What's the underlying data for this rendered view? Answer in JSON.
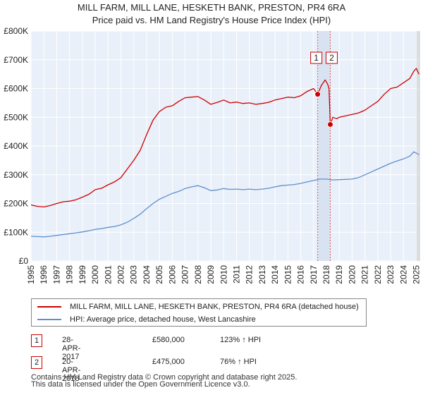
{
  "title_line1": "MILL FARM, MILL LANE, HESKETH BANK, PRESTON, PR4 6RA",
  "title_line2": "Price paid vs. HM Land Registry's House Price Index (HPI)",
  "chart_data": {
    "type": "line",
    "title": "MILL FARM, MILL LANE, HESKETH BANK, PRESTON, PR4 6RA — Price paid vs. HM Land Registry's House Price Index (HPI)",
    "xlabel": "",
    "ylabel": "",
    "xlim": [
      1995,
      2025.3
    ],
    "ylim": [
      0,
      800000
    ],
    "x_ticks": [
      1995,
      1996,
      1997,
      1998,
      1999,
      2000,
      2001,
      2002,
      2003,
      2004,
      2005,
      2006,
      2007,
      2008,
      2009,
      2010,
      2011,
      2012,
      2013,
      2014,
      2015,
      2016,
      2017,
      2018,
      2019,
      2020,
      2021,
      2022,
      2023,
      2024,
      2025
    ],
    "y_ticks": [
      {
        "value": 0,
        "label": "£0"
      },
      {
        "value": 100000,
        "label": "£100K"
      },
      {
        "value": 200000,
        "label": "£200K"
      },
      {
        "value": 300000,
        "label": "£300K"
      },
      {
        "value": 400000,
        "label": "£400K"
      },
      {
        "value": 500000,
        "label": "£500K"
      },
      {
        "value": 600000,
        "label": "£600K"
      },
      {
        "value": 700000,
        "label": "£700K"
      },
      {
        "value": 800000,
        "label": "£800K"
      }
    ],
    "grid": true,
    "series": [
      {
        "name": "MILL FARM, MILL LANE, HESKETH BANK, PRESTON, PR4 6RA (detached house)",
        "color": "#cc0000",
        "x": [
          1995,
          1995.5,
          1996,
          1996.5,
          1997,
          1997.5,
          1998,
          1998.5,
          1999,
          1999.5,
          2000,
          2000.5,
          2001,
          2001.5,
          2002,
          2002.5,
          2003,
          2003.5,
          2004,
          2004.5,
          2005,
          2005.5,
          2006,
          2006.5,
          2007,
          2007.5,
          2008,
          2008.5,
          2009,
          2009.5,
          2010,
          2010.5,
          2011,
          2011.5,
          2012,
          2012.5,
          2013,
          2013.5,
          2014,
          2014.5,
          2015,
          2015.5,
          2016,
          2016.5,
          2017,
          2017.32,
          2017.6,
          2017.9,
          2018.1,
          2018.2,
          2018.3,
          2018.5,
          2018.8,
          2019,
          2019.5,
          2020,
          2020.5,
          2021,
          2021.5,
          2022,
          2022.5,
          2023,
          2023.5,
          2024,
          2024.5,
          2024.8,
          2025,
          2025.2
        ],
        "values": [
          195000,
          190000,
          188000,
          193000,
          200000,
          206000,
          208000,
          213000,
          222000,
          232000,
          248000,
          253000,
          265000,
          275000,
          290000,
          320000,
          350000,
          385000,
          440000,
          490000,
          520000,
          535000,
          540000,
          555000,
          568000,
          570000,
          572000,
          560000,
          545000,
          552000,
          560000,
          550000,
          553000,
          548000,
          550000,
          545000,
          548000,
          552000,
          560000,
          565000,
          570000,
          568000,
          575000,
          590000,
          600000,
          580000,
          610000,
          630000,
          615000,
          600000,
          475000,
          500000,
          495000,
          500000,
          505000,
          510000,
          515000,
          525000,
          540000,
          555000,
          580000,
          600000,
          605000,
          620000,
          635000,
          660000,
          670000,
          650000
        ]
      },
      {
        "name": "HPI: Average price, detached house, West Lancashire",
        "color": "#5b8fd0",
        "x": [
          1995,
          1995.5,
          1996,
          1996.5,
          1997,
          1997.5,
          1998,
          1998.5,
          1999,
          1999.5,
          2000,
          2000.5,
          2001,
          2001.5,
          2002,
          2002.5,
          2003,
          2003.5,
          2004,
          2004.5,
          2005,
          2005.5,
          2006,
          2006.5,
          2007,
          2007.5,
          2008,
          2008.5,
          2009,
          2009.5,
          2010,
          2010.5,
          2011,
          2011.5,
          2012,
          2012.5,
          2013,
          2013.5,
          2014,
          2014.5,
          2015,
          2015.5,
          2016,
          2016.5,
          2017,
          2017.5,
          2018,
          2018.5,
          2019,
          2019.5,
          2020,
          2020.5,
          2021,
          2021.5,
          2022,
          2022.5,
          2023,
          2023.5,
          2024,
          2024.5,
          2024.8,
          2025,
          2025.2
        ],
        "values": [
          86000,
          85000,
          84000,
          86000,
          89000,
          92000,
          95000,
          98000,
          101000,
          105000,
          110000,
          113000,
          117000,
          120000,
          126000,
          135000,
          148000,
          163000,
          182000,
          200000,
          215000,
          225000,
          235000,
          242000,
          252000,
          258000,
          262000,
          255000,
          245000,
          247000,
          252000,
          249000,
          250000,
          248000,
          250000,
          248000,
          250000,
          253000,
          258000,
          262000,
          264000,
          266000,
          270000,
          275000,
          280000,
          285000,
          285000,
          282000,
          283000,
          284000,
          285000,
          290000,
          300000,
          310000,
          320000,
          330000,
          340000,
          348000,
          355000,
          365000,
          380000,
          375000,
          370000
        ]
      }
    ],
    "annotations": [
      {
        "label": "1",
        "x": 2017.32,
        "price": 580000,
        "color": "#cc0000"
      },
      {
        "label": "2",
        "x": 2018.3,
        "price": 475000,
        "color": "#cc0000"
      }
    ]
  },
  "legend": [
    {
      "label": "MILL FARM, MILL LANE, HESKETH BANK, PRESTON, PR4 6RA (detached house)",
      "color": "#cc0000"
    },
    {
      "label": "HPI: Average price, detached house, West Lancashire",
      "color": "#5b8fd0"
    }
  ],
  "transactions": [
    {
      "num": "1",
      "date": "28-APR-2017",
      "price": "£580,000",
      "hpi": "123% ↑ HPI"
    },
    {
      "num": "2",
      "date": "20-APR-2018",
      "price": "£475,000",
      "hpi": "76% ↑ HPI"
    }
  ],
  "footer": {
    "line1": "Contains HM Land Registry data © Crown copyright and database right 2025.",
    "line2": "This data is licensed under the Open Government Licence v3.0."
  }
}
